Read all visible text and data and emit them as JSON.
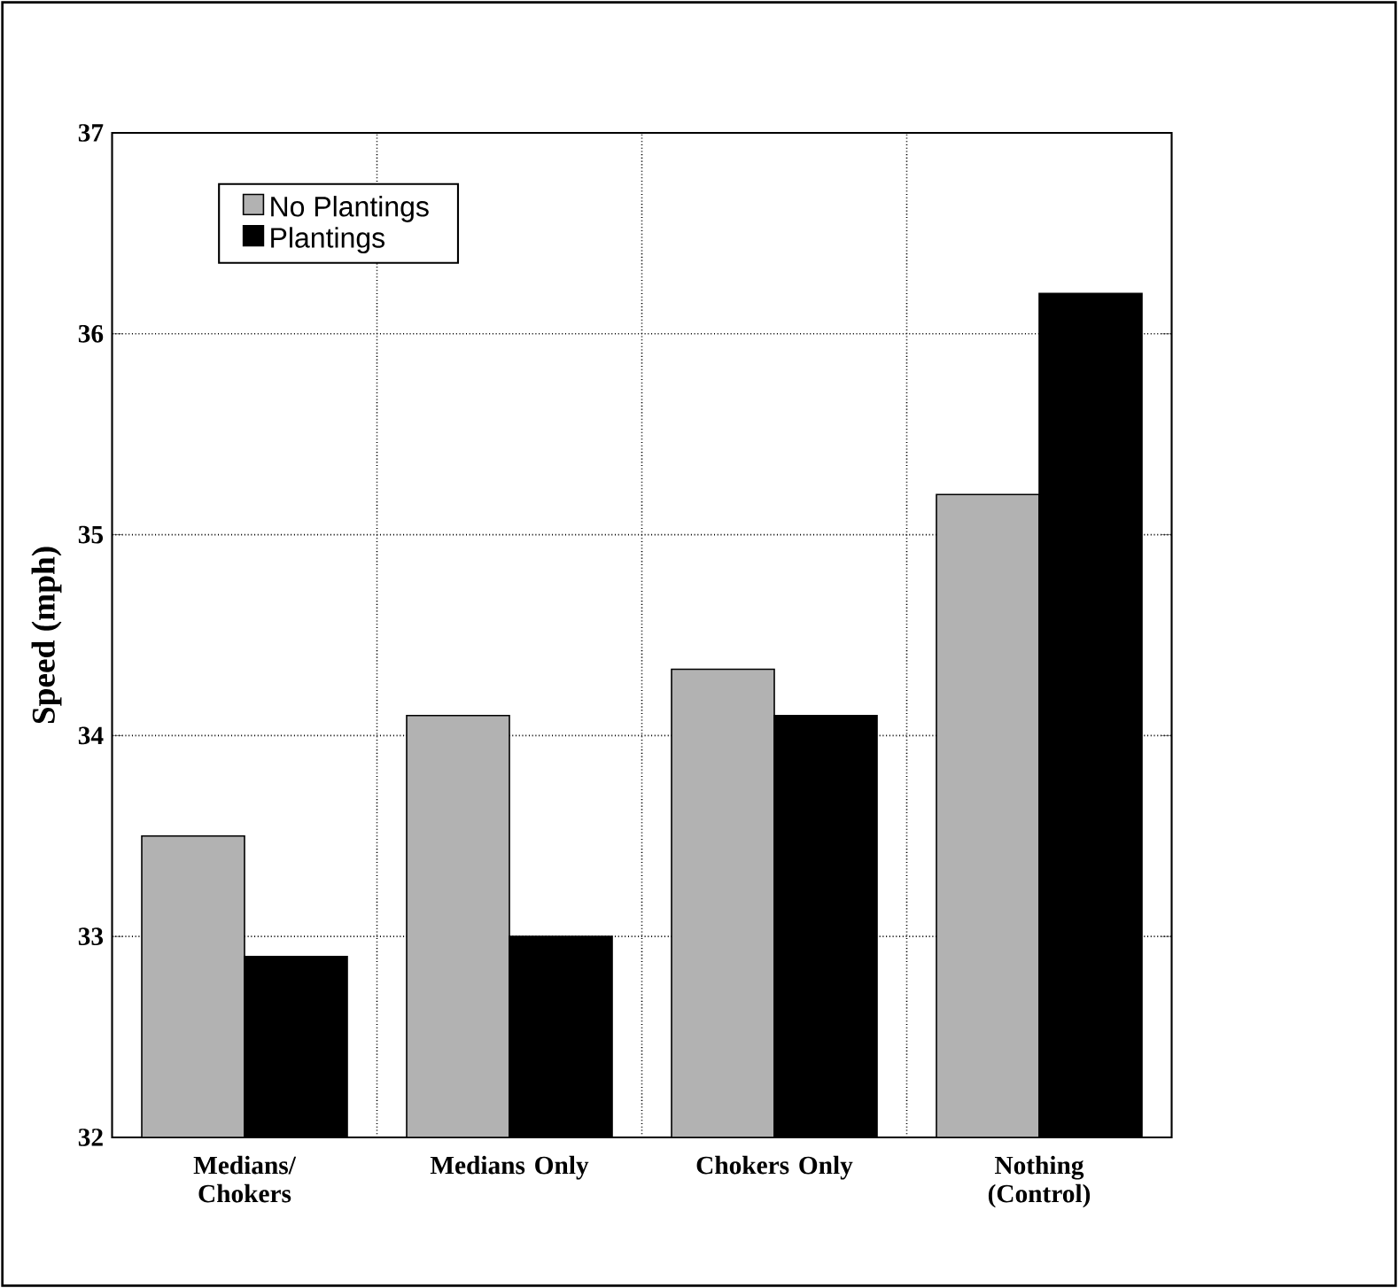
{
  "chart_data": {
    "type": "bar",
    "ylabel": "Speed (mph)",
    "categories": [
      "Medians/ Chokers",
      "Medians Only",
      "Chokers Only",
      "Nothing (Control)"
    ],
    "series": [
      {
        "name": "No Plantings",
        "color": "#b2b2b2",
        "values": [
          33.5,
          34.1,
          34.33,
          35.2
        ]
      },
      {
        "name": "Plantings",
        "color": "#000000",
        "values": [
          32.9,
          33.0,
          34.1,
          36.2
        ]
      }
    ],
    "ylim": [
      32,
      37
    ],
    "yticks": [
      32,
      33,
      34,
      35,
      36,
      37
    ],
    "grid": true,
    "legend": "top left"
  }
}
